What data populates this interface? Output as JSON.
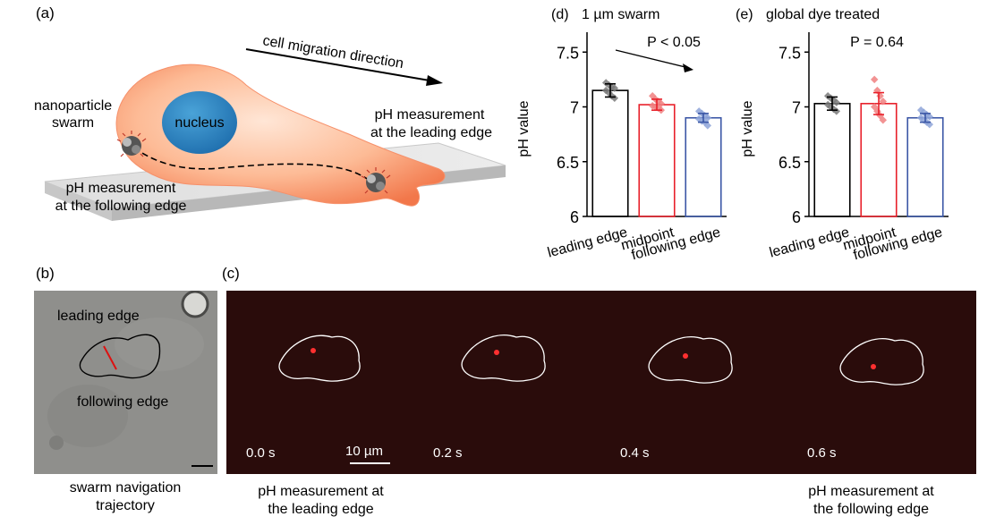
{
  "panel_a": {
    "letter": "(a)",
    "direction_label": "cell migration direction",
    "swarm_label_1": "nanoparticle",
    "swarm_label_2": "swarm",
    "nucleus_label": "nucleus",
    "leading_label_1": "pH measurement",
    "leading_label_2": "at the leading edge",
    "following_label_1": "pH measurement",
    "following_label_2": "at the following edge"
  },
  "panel_b": {
    "letter": "(b)",
    "leading_edge": "leading edge",
    "following_edge": "following edge",
    "caption_1": "swarm navigation",
    "caption_2": "trajectory"
  },
  "panel_c": {
    "letter": "(c)",
    "frames": [
      "0.0 s",
      "0.2 s",
      "0.4 s",
      "0.6 s"
    ],
    "scale_bar": "10 µm",
    "caption_left_1": "pH measurement at",
    "caption_left_2": "the leading edge",
    "caption_right_1": "pH measurement at",
    "caption_right_2": "the following edge"
  },
  "chart_data": [
    {
      "type": "bar",
      "panel": "(d)",
      "title": "1 µm swarm",
      "ylabel": "pH value",
      "ylim": [
        6,
        7.6
      ],
      "yticks": [
        "6",
        "6.5",
        "7",
        "7.5"
      ],
      "categories": [
        "leading edge",
        "midpoint",
        "following edge"
      ],
      "values": [
        7.15,
        7.02,
        6.9
      ],
      "errors": [
        0.06,
        0.05,
        0.04
      ],
      "points": [
        [
          7.22,
          7.2,
          7.18,
          7.17,
          7.15,
          7.13,
          7.1,
          7.08
        ],
        [
          7.1,
          7.07,
          7.05,
          7.03,
          7.01,
          7.0,
          6.99,
          6.97
        ],
        [
          6.96,
          6.94,
          6.92,
          6.9,
          6.89,
          6.87,
          6.86,
          6.83
        ]
      ],
      "colors": [
        "#000000",
        "#e8202a",
        "#3b57a6"
      ],
      "point_colors": [
        "#7a7a7a",
        "#f08080",
        "#8ea4d8"
      ],
      "annotation": "P < 0.05"
    },
    {
      "type": "bar",
      "panel": "(e)",
      "title": "global dye treated",
      "ylabel": "pH value",
      "ylim": [
        6,
        7.6
      ],
      "yticks": [
        "6",
        "6.5",
        "7",
        "7.5"
      ],
      "categories": [
        "leading edge",
        "midpoint",
        "following edge"
      ],
      "values": [
        7.03,
        7.03,
        6.9
      ],
      "errors": [
        0.06,
        0.1,
        0.04
      ],
      "points": [
        [
          7.1,
          7.08,
          7.06,
          7.04,
          7.02,
          7.0,
          6.98,
          6.96
        ],
        [
          7.25,
          7.15,
          7.1,
          7.05,
          7.0,
          6.96,
          6.92,
          6.88
        ],
        [
          6.97,
          6.95,
          6.93,
          6.91,
          6.9,
          6.88,
          6.86,
          6.84
        ]
      ],
      "colors": [
        "#000000",
        "#e8202a",
        "#3b57a6"
      ],
      "point_colors": [
        "#7a7a7a",
        "#f08080",
        "#8ea4d8"
      ],
      "annotation": "P = 0.64"
    }
  ]
}
